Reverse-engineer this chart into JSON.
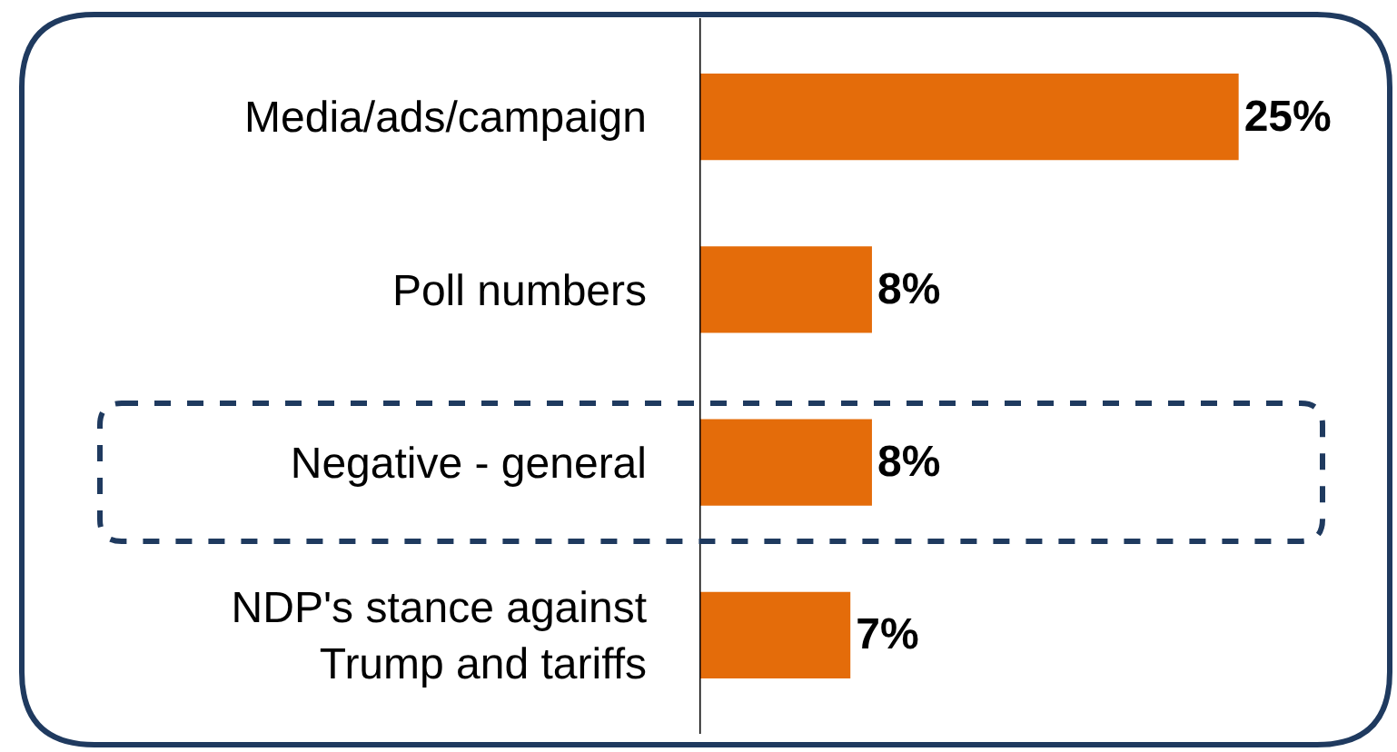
{
  "chart_data": {
    "type": "bar",
    "orientation": "horizontal",
    "categories": [
      "Media/ads/campaign",
      "Poll numbers",
      "Negative - general",
      "NDP's stance against\nTrump and tariffs"
    ],
    "values": [
      25,
      8,
      8,
      7
    ],
    "color": "#e46c0a",
    "data_labels": true,
    "value_labels": [
      "25%",
      "8%",
      "8%",
      "7%"
    ]
  }
}
